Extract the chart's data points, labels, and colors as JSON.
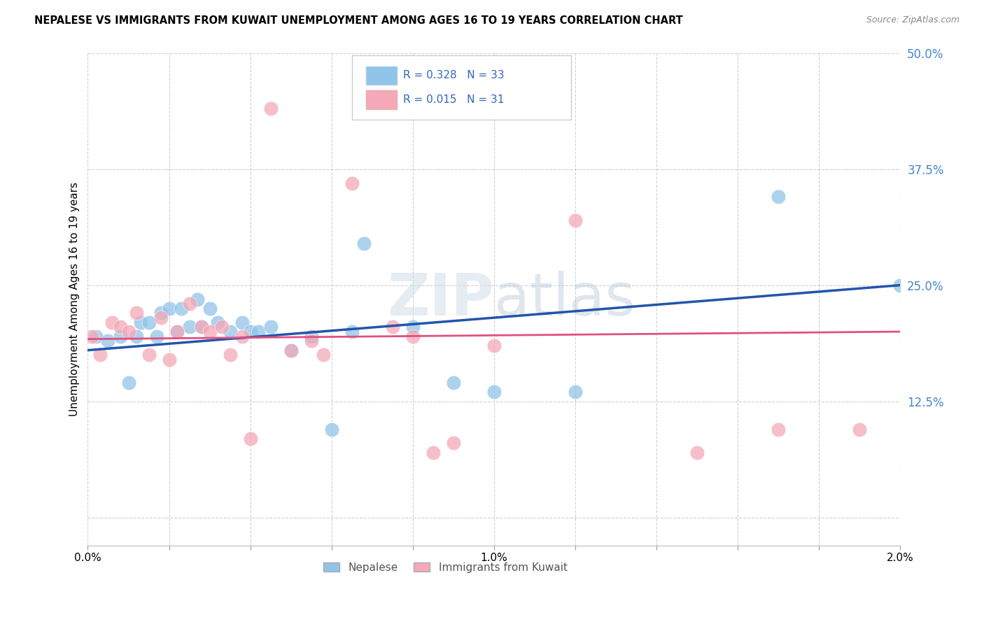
{
  "title": "NEPALESE VS IMMIGRANTS FROM KUWAIT UNEMPLOYMENT AMONG AGES 16 TO 19 YEARS CORRELATION CHART",
  "source": "Source: ZipAtlas.com",
  "ylabel": "Unemployment Among Ages 16 to 19 years",
  "xlim": [
    0.0,
    0.02
  ],
  "ylim": [
    -0.03,
    0.5
  ],
  "yticks": [
    0.0,
    0.125,
    0.25,
    0.375,
    0.5
  ],
  "ytick_labels": [
    "",
    "12.5%",
    "25.0%",
    "37.5%",
    "50.0%"
  ],
  "xticks": [
    0.0,
    0.002,
    0.004,
    0.006,
    0.008,
    0.01,
    0.012,
    0.014,
    0.016,
    0.018,
    0.02
  ],
  "xtick_labels": [
    "0.0%",
    "",
    "",
    "",
    "",
    "1.0%",
    "",
    "",
    "",
    "",
    "2.0%"
  ],
  "blue_R": 0.328,
  "blue_N": 33,
  "pink_R": 0.015,
  "pink_N": 31,
  "blue_color": "#90c4e8",
  "blue_edge_color": "#90c4e8",
  "pink_color": "#f4a8b8",
  "pink_edge_color": "#f4a8b8",
  "blue_line_color": "#2255aa",
  "pink_line_color": "#e05080",
  "legend_label_blue": "Nepalese",
  "legend_label_pink": "Immigrants from Kuwait",
  "watermark": "ZIPatlas",
  "blue_x": [
    0.0002,
    0.0005,
    0.0008,
    0.001,
    0.0012,
    0.0013,
    0.0015,
    0.0017,
    0.0018,
    0.002,
    0.0022,
    0.0023,
    0.0025,
    0.0027,
    0.0028,
    0.003,
    0.0032,
    0.0035,
    0.0038,
    0.004,
    0.0042,
    0.0045,
    0.005,
    0.0055,
    0.006,
    0.0065,
    0.0068,
    0.008,
    0.009,
    0.01,
    0.012,
    0.017,
    0.02
  ],
  "blue_y": [
    0.195,
    0.19,
    0.195,
    0.145,
    0.195,
    0.21,
    0.21,
    0.195,
    0.22,
    0.225,
    0.2,
    0.225,
    0.205,
    0.235,
    0.205,
    0.225,
    0.21,
    0.2,
    0.21,
    0.2,
    0.2,
    0.205,
    0.18,
    0.195,
    0.095,
    0.2,
    0.295,
    0.205,
    0.145,
    0.135,
    0.135,
    0.345,
    0.25
  ],
  "pink_x": [
    0.0001,
    0.0003,
    0.0006,
    0.0008,
    0.001,
    0.0012,
    0.0015,
    0.0018,
    0.002,
    0.0022,
    0.0025,
    0.0028,
    0.003,
    0.0033,
    0.0035,
    0.0038,
    0.004,
    0.0045,
    0.005,
    0.0055,
    0.0058,
    0.0065,
    0.0075,
    0.008,
    0.0085,
    0.009,
    0.01,
    0.012,
    0.015,
    0.017,
    0.019
  ],
  "pink_y": [
    0.195,
    0.175,
    0.21,
    0.205,
    0.2,
    0.22,
    0.175,
    0.215,
    0.17,
    0.2,
    0.23,
    0.205,
    0.2,
    0.205,
    0.175,
    0.195,
    0.085,
    0.44,
    0.18,
    0.19,
    0.175,
    0.36,
    0.205,
    0.195,
    0.07,
    0.08,
    0.185,
    0.32,
    0.07,
    0.095,
    0.095
  ],
  "blue_line_x0": 0.0,
  "blue_line_y0": 0.18,
  "blue_line_x1": 0.02,
  "blue_line_y1": 0.25,
  "pink_line_x0": 0.0,
  "pink_line_y0": 0.192,
  "pink_line_x1": 0.02,
  "pink_line_y1": 0.2
}
